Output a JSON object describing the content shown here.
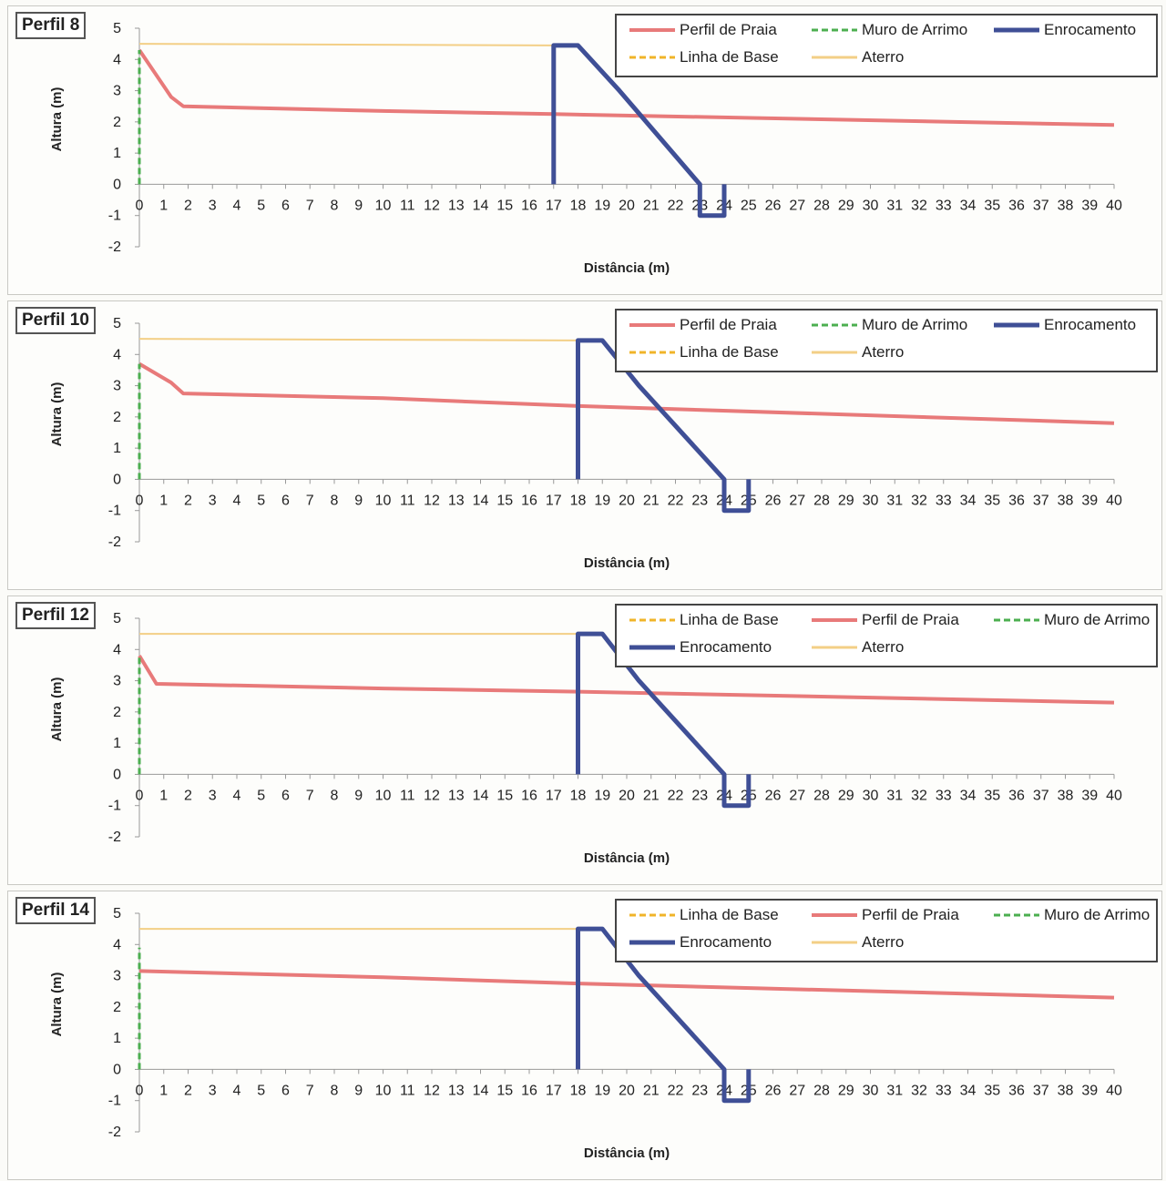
{
  "colors": {
    "perfil_de_praia": "#e87a7a",
    "muro_de_arrimo": "#4caf50",
    "enrocamento": "#3f4f96",
    "linha_de_base": "#f0b429",
    "aterro": "#f3cf86"
  },
  "chart_data": [
    {
      "type": "line",
      "title": "Perfil 8",
      "xlabel": "Distância (m)",
      "ylabel": "Altura (m)",
      "xlim": [
        0,
        40
      ],
      "ylim": [
        -2,
        5
      ],
      "x_ticks": [
        0,
        1,
        2,
        3,
        4,
        5,
        6,
        7,
        8,
        9,
        10,
        11,
        12,
        13,
        14,
        15,
        16,
        17,
        18,
        19,
        20,
        21,
        22,
        23,
        24,
        25,
        26,
        27,
        28,
        29,
        30,
        31,
        32,
        33,
        34,
        35,
        36,
        37,
        38,
        39,
        40
      ],
      "y_ticks": [
        -2,
        -1,
        0,
        1,
        2,
        3,
        4,
        5
      ],
      "legend": [
        {
          "key": "perfil_de_praia",
          "label": "Perfil de Praia"
        },
        {
          "key": "muro_de_arrimo",
          "label": "Muro de Arrimo"
        },
        {
          "key": "enrocamento",
          "label": "Enrocamento"
        },
        {
          "key": "linha_de_base",
          "label": "Linha de Base"
        },
        {
          "key": "aterro",
          "label": "Aterro"
        }
      ],
      "series": [
        {
          "key": "aterro",
          "label": "Aterro",
          "x": [
            0,
            17
          ],
          "y": [
            4.5,
            4.45
          ]
        },
        {
          "key": "perfil_de_praia",
          "label": "Perfil de Praia",
          "x": [
            0,
            1.3,
            1.8,
            10,
            17,
            40
          ],
          "y": [
            4.3,
            2.8,
            2.5,
            2.35,
            2.25,
            1.9
          ]
        },
        {
          "key": "muro_de_arrimo",
          "label": "Muro de Arrimo",
          "x": [
            0,
            0
          ],
          "y": [
            0,
            4.3
          ]
        },
        {
          "key": "linha_de_base",
          "label": "Linha de Base",
          "x": [
            17,
            17
          ],
          "y": [
            0,
            4.45
          ]
        },
        {
          "key": "enrocamento",
          "label": "Enrocamento",
          "x": [
            17,
            17,
            18,
            19.7,
            23,
            23,
            24,
            24
          ],
          "y": [
            0,
            4.45,
            4.45,
            3,
            0,
            -1,
            -1,
            0
          ]
        }
      ]
    },
    {
      "type": "line",
      "title": "Perfil 10",
      "xlabel": "Distância (m)",
      "ylabel": "Altura (m)",
      "xlim": [
        0,
        40
      ],
      "ylim": [
        -2,
        5
      ],
      "x_ticks": [
        0,
        1,
        2,
        3,
        4,
        5,
        6,
        7,
        8,
        9,
        10,
        11,
        12,
        13,
        14,
        15,
        16,
        17,
        18,
        19,
        20,
        21,
        22,
        23,
        24,
        25,
        26,
        27,
        28,
        29,
        30,
        31,
        32,
        33,
        34,
        35,
        36,
        37,
        38,
        39,
        40
      ],
      "y_ticks": [
        -2,
        -1,
        0,
        1,
        2,
        3,
        4,
        5
      ],
      "legend": [
        {
          "key": "perfil_de_praia",
          "label": "Perfil de Praia"
        },
        {
          "key": "muro_de_arrimo",
          "label": "Muro de Arrimo"
        },
        {
          "key": "enrocamento",
          "label": "Enrocamento"
        },
        {
          "key": "linha_de_base",
          "label": "Linha de Base"
        },
        {
          "key": "aterro",
          "label": "Aterro"
        }
      ],
      "series": [
        {
          "key": "aterro",
          "label": "Aterro",
          "x": [
            0,
            18
          ],
          "y": [
            4.5,
            4.45
          ]
        },
        {
          "key": "perfil_de_praia",
          "label": "Perfil de Praia",
          "x": [
            0,
            1.3,
            1.8,
            10,
            18,
            40
          ],
          "y": [
            3.7,
            3.1,
            2.75,
            2.6,
            2.35,
            1.8
          ]
        },
        {
          "key": "muro_de_arrimo",
          "label": "Muro de Arrimo",
          "x": [
            0,
            0
          ],
          "y": [
            0,
            3.7
          ]
        },
        {
          "key": "linha_de_base",
          "label": "Linha de Base",
          "x": [
            18,
            18
          ],
          "y": [
            0,
            4.45
          ]
        },
        {
          "key": "enrocamento",
          "label": "Enrocamento",
          "x": [
            18,
            18,
            19,
            20.5,
            24,
            24,
            25,
            25
          ],
          "y": [
            0,
            4.45,
            4.45,
            3,
            0,
            -1,
            -1,
            0
          ]
        }
      ]
    },
    {
      "type": "line",
      "title": "Perfil 12",
      "xlabel": "Distância (m)",
      "ylabel": "Altura (m)",
      "xlim": [
        0,
        40
      ],
      "ylim": [
        -2,
        5
      ],
      "x_ticks": [
        0,
        1,
        2,
        3,
        4,
        5,
        6,
        7,
        8,
        9,
        10,
        11,
        12,
        13,
        14,
        15,
        16,
        17,
        18,
        19,
        20,
        21,
        22,
        23,
        24,
        25,
        26,
        27,
        28,
        29,
        30,
        31,
        32,
        33,
        34,
        35,
        36,
        37,
        38,
        39,
        40
      ],
      "y_ticks": [
        -2,
        -1,
        0,
        1,
        2,
        3,
        4,
        5
      ],
      "legend": [
        {
          "key": "linha_de_base",
          "label": "Linha de Base"
        },
        {
          "key": "perfil_de_praia",
          "label": "Perfil de Praia"
        },
        {
          "key": "muro_de_arrimo",
          "label": "Muro de Arrimo"
        },
        {
          "key": "enrocamento",
          "label": "Enrocamento"
        },
        {
          "key": "aterro",
          "label": "Aterro"
        }
      ],
      "series": [
        {
          "key": "aterro",
          "label": "Aterro",
          "x": [
            0,
            18
          ],
          "y": [
            4.5,
            4.5
          ]
        },
        {
          "key": "perfil_de_praia",
          "label": "Perfil de Praia",
          "x": [
            0,
            0.7,
            10,
            18,
            40
          ],
          "y": [
            3.8,
            2.9,
            2.75,
            2.65,
            2.3
          ]
        },
        {
          "key": "muro_de_arrimo",
          "label": "Muro de Arrimo",
          "x": [
            0,
            0
          ],
          "y": [
            0,
            3.8
          ]
        },
        {
          "key": "linha_de_base",
          "label": "Linha de Base",
          "x": [
            18,
            18
          ],
          "y": [
            2.7,
            4.5
          ]
        },
        {
          "key": "enrocamento",
          "label": "Enrocamento",
          "x": [
            18,
            18,
            19,
            20.5,
            24,
            24,
            25,
            25
          ],
          "y": [
            0,
            4.5,
            4.5,
            3,
            0,
            -1,
            -1,
            0
          ]
        }
      ]
    },
    {
      "type": "line",
      "title": "Perfil 14",
      "xlabel": "Distância (m)",
      "ylabel": "Altura (m)",
      "xlim": [
        0,
        40
      ],
      "ylim": [
        -2,
        5
      ],
      "x_ticks": [
        0,
        1,
        2,
        3,
        4,
        5,
        6,
        7,
        8,
        9,
        10,
        11,
        12,
        13,
        14,
        15,
        16,
        17,
        18,
        19,
        20,
        21,
        22,
        23,
        24,
        25,
        26,
        27,
        28,
        29,
        30,
        31,
        32,
        33,
        34,
        35,
        36,
        37,
        38,
        39,
        40
      ],
      "y_ticks": [
        -2,
        -1,
        0,
        1,
        2,
        3,
        4,
        5
      ],
      "legend": [
        {
          "key": "linha_de_base",
          "label": "Linha de Base"
        },
        {
          "key": "perfil_de_praia",
          "label": "Perfil de Praia"
        },
        {
          "key": "muro_de_arrimo",
          "label": "Muro de Arrimo"
        },
        {
          "key": "enrocamento",
          "label": "Enrocamento"
        },
        {
          "key": "aterro",
          "label": "Aterro"
        }
      ],
      "series": [
        {
          "key": "aterro",
          "label": "Aterro",
          "x": [
            0,
            18
          ],
          "y": [
            4.5,
            4.5
          ]
        },
        {
          "key": "perfil_de_praia",
          "label": "Perfil de Praia",
          "x": [
            0,
            10,
            18,
            40
          ],
          "y": [
            3.15,
            2.95,
            2.75,
            2.3
          ]
        },
        {
          "key": "muro_de_arrimo",
          "label": "Muro de Arrimo",
          "x": [
            0,
            0
          ],
          "y": [
            0,
            3.9
          ]
        },
        {
          "key": "linha_de_base",
          "label": "Linha de Base",
          "x": [
            18,
            18
          ],
          "y": [
            2.8,
            4.5
          ]
        },
        {
          "key": "enrocamento",
          "label": "Enrocamento",
          "x": [
            18,
            18,
            19,
            20.5,
            24,
            24,
            25,
            25
          ],
          "y": [
            0,
            4.5,
            4.5,
            3,
            0,
            -1,
            -1,
            0
          ]
        }
      ]
    }
  ]
}
